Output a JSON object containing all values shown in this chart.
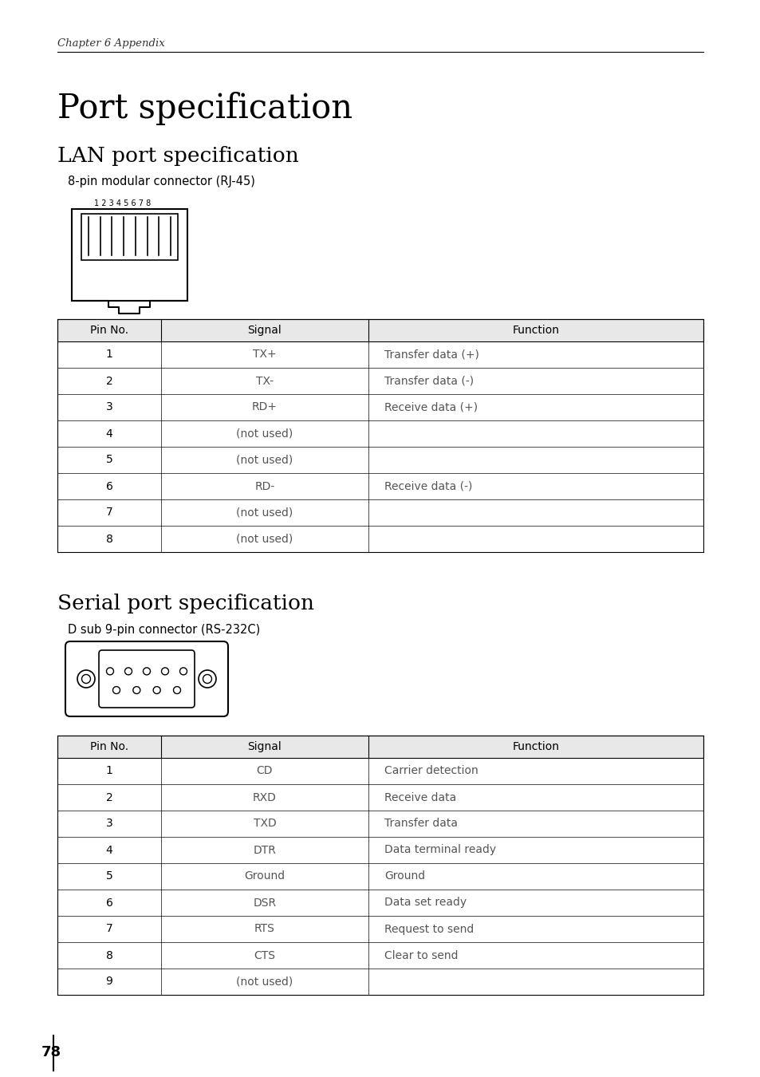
{
  "bg_color": "#ffffff",
  "text_color": "#000000",
  "gray_text": "#555555",
  "chapter_text": "Chapter 6 Appendix",
  "page_title": "Port specification",
  "lan_title": "LAN port specification",
  "lan_connector": "8-pin modular connector (RJ-45)",
  "lan_pin_numbers": "1 2 3 4 5 6 7 8",
  "lan_table_header": [
    "Pin No.",
    "Signal",
    "Function"
  ],
  "lan_table_data": [
    [
      "1",
      "TX+",
      "Transfer data (+)"
    ],
    [
      "2",
      "TX-",
      "Transfer data (-)"
    ],
    [
      "3",
      "RD+",
      "Receive data (+)"
    ],
    [
      "4",
      "(not used)",
      ""
    ],
    [
      "5",
      "(not used)",
      ""
    ],
    [
      "6",
      "RD-",
      "Receive data (-)"
    ],
    [
      "7",
      "(not used)",
      ""
    ],
    [
      "8",
      "(not used)",
      ""
    ]
  ],
  "serial_title": "Serial port specification",
  "serial_connector": "D sub 9-pin connector (RS-232C)",
  "serial_table_header": [
    "Pin No.",
    "Signal",
    "Function"
  ],
  "serial_table_data": [
    [
      "1",
      "CD",
      "Carrier detection"
    ],
    [
      "2",
      "RXD",
      "Receive data"
    ],
    [
      "3",
      "TXD",
      "Transfer data"
    ],
    [
      "4",
      "DTR",
      "Data terminal ready"
    ],
    [
      "5",
      "Ground",
      "Ground"
    ],
    [
      "6",
      "DSR",
      "Data set ready"
    ],
    [
      "7",
      "RTS",
      "Request to send"
    ],
    [
      "8",
      "CTS",
      "Clear to send"
    ],
    [
      "9",
      "(not used)",
      ""
    ]
  ],
  "page_number": "78"
}
